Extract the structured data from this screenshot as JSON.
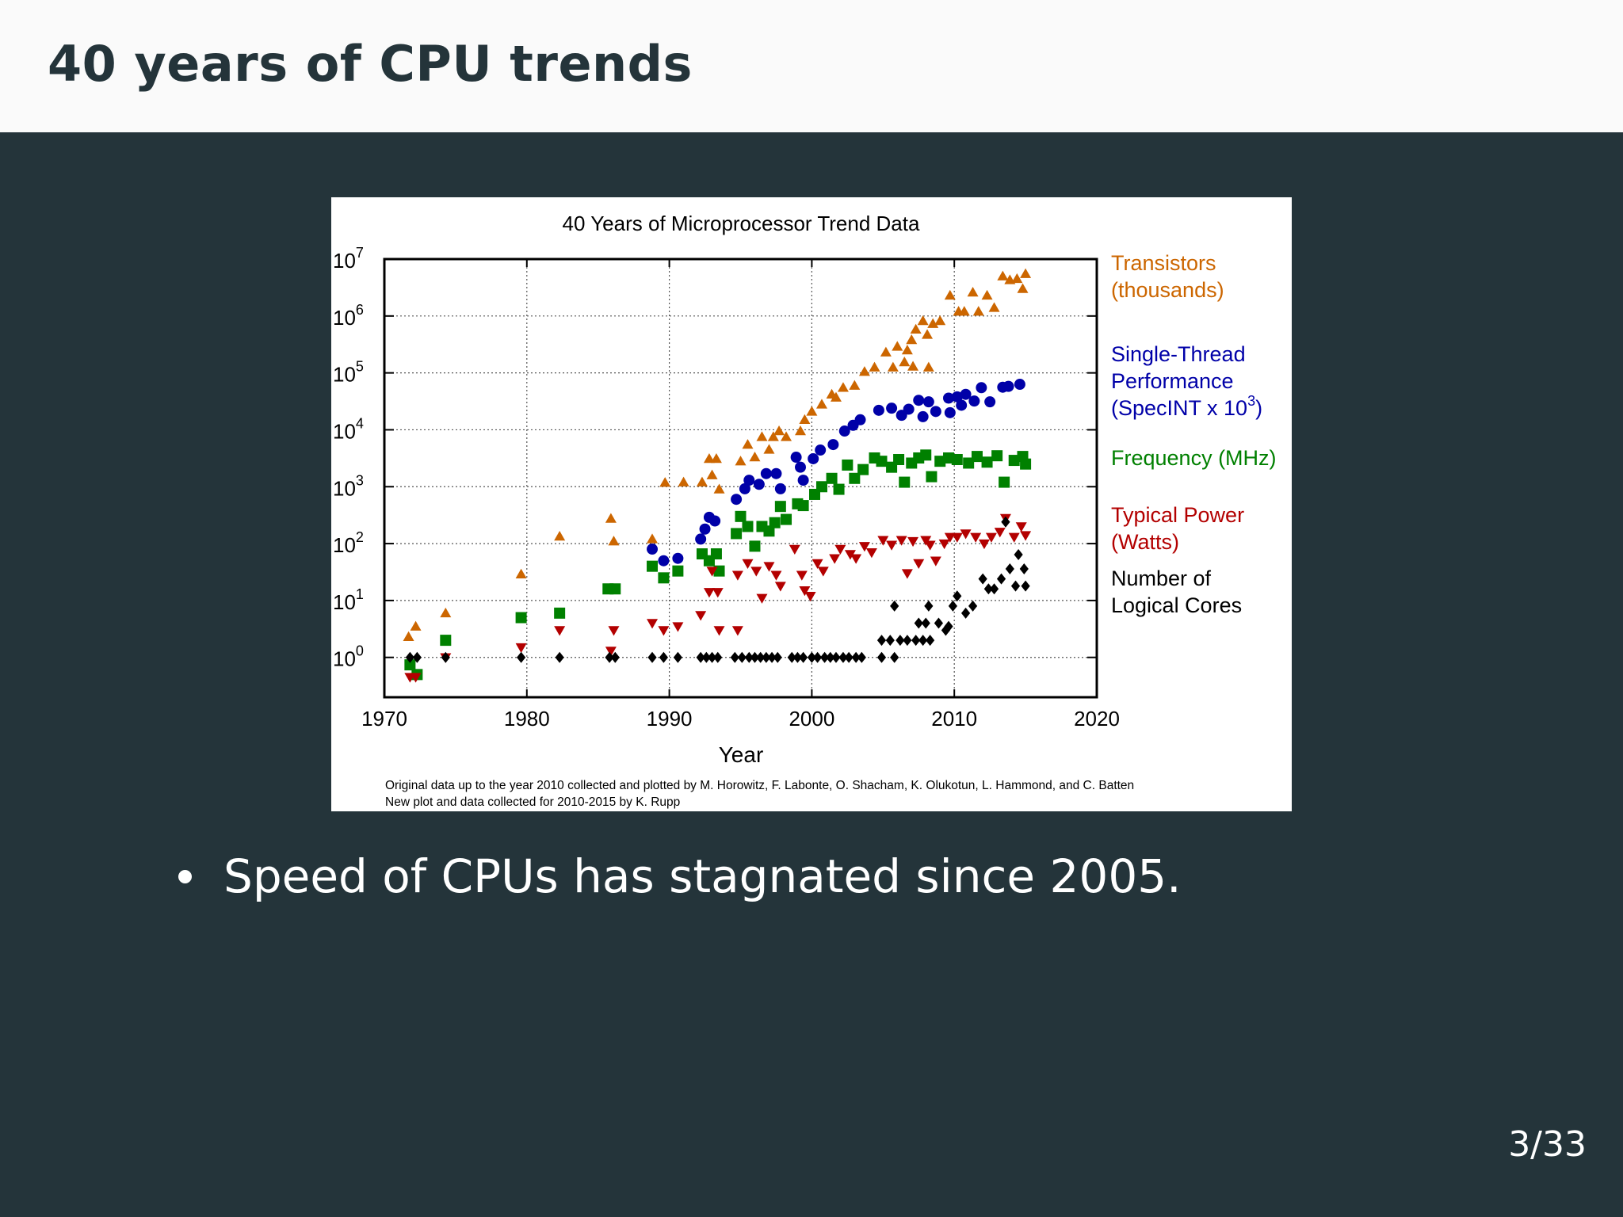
{
  "slide": {
    "title": "40 years of CPU trends",
    "bullets": [
      "Speed of CPUs has stagnated since 2005."
    ],
    "page_number": "3/33",
    "colors": {
      "background": "#24343a",
      "header": "#fafafa",
      "text": "#ffffff"
    }
  },
  "chart_data": {
    "type": "scatter",
    "title": "40 Years of Microprocessor Trend Data",
    "xlabel": "Year",
    "ylabel": "",
    "xlim": [
      1970,
      2020
    ],
    "ylim_log10": [
      -0.7,
      7
    ],
    "y_scale": "log",
    "x_ticks": [
      "1970",
      "1980",
      "1990",
      "2000",
      "2010",
      "2020"
    ],
    "y_ticks": [
      {
        "base": "10",
        "exp": "0"
      },
      {
        "base": "10",
        "exp": "1"
      },
      {
        "base": "10",
        "exp": "2"
      },
      {
        "base": "10",
        "exp": "3"
      },
      {
        "base": "10",
        "exp": "4"
      },
      {
        "base": "10",
        "exp": "5"
      },
      {
        "base": "10",
        "exp": "6"
      },
      {
        "base": "10",
        "exp": "7"
      }
    ],
    "grid": true,
    "legend_position": "right",
    "footnotes": [
      "Original data up to the year 2010 collected and plotted by M. Horowitz, F. Labonte, O. Shacham, K. Olukotun, L. Hammond, and C. Batten",
      "New plot and data collected for 2010-2015 by K. Rupp"
    ],
    "series": [
      {
        "name": "Transistors (thousands)",
        "legend_lines": [
          "Transistors",
          "(thousands)"
        ],
        "color": "#cc6600",
        "marker": "triangle-up",
        "points": [
          [
            1971.7,
            2.3
          ],
          [
            1972.2,
            3.5
          ],
          [
            1974.3,
            6
          ],
          [
            1979.6,
            29
          ],
          [
            1982.3,
            134
          ],
          [
            1985.9,
            275
          ],
          [
            1986.1,
            110
          ],
          [
            1989.7,
            1180
          ],
          [
            1988.8,
            120
          ],
          [
            1991,
            1200
          ],
          [
            1992.3,
            1200
          ],
          [
            1992.8,
            3100
          ],
          [
            1993.3,
            3100
          ],
          [
            1993,
            1600
          ],
          [
            1993.5,
            900
          ],
          [
            1995,
            2800
          ],
          [
            1995.5,
            5500
          ],
          [
            1996,
            3300
          ],
          [
            1996.5,
            7500
          ],
          [
            1997.3,
            7500
          ],
          [
            1997.7,
            9500
          ],
          [
            1997,
            4500
          ],
          [
            1998.2,
            7500
          ],
          [
            1999.2,
            9500
          ],
          [
            1999.5,
            15000
          ],
          [
            2000,
            21000
          ],
          [
            2000.7,
            28000
          ],
          [
            2001.4,
            42000
          ],
          [
            2001.7,
            37000
          ],
          [
            2002.2,
            55000
          ],
          [
            2003,
            60000
          ],
          [
            2003.7,
            105000
          ],
          [
            2004.4,
            125000
          ],
          [
            2005.2,
            230000
          ],
          [
            2005.7,
            125000
          ],
          [
            2006,
            290000
          ],
          [
            2006.5,
            155000
          ],
          [
            2007,
            380000
          ],
          [
            2007.3,
            580000
          ],
          [
            2007.8,
            820000
          ],
          [
            2008.1,
            470000
          ],
          [
            2008.5,
            730000
          ],
          [
            2009,
            820000
          ],
          [
            2009.7,
            2300000
          ],
          [
            2010.3,
            1200000
          ],
          [
            2010.7,
            1200000
          ],
          [
            2011.3,
            2600000
          ],
          [
            2011.7,
            1200000
          ],
          [
            2012.3,
            2300000
          ],
          [
            2012.8,
            1400000
          ],
          [
            2013.4,
            5000000
          ],
          [
            2013.9,
            4300000
          ],
          [
            2014.4,
            4500000
          ],
          [
            2014.8,
            3000000
          ],
          [
            2015,
            5500000
          ],
          [
            2007.1,
            130000
          ],
          [
            2008.2,
            125000
          ],
          [
            2006.7,
            250000
          ]
        ]
      },
      {
        "name": "Single-Thread Performance (SpecINT x 10^3)",
        "legend_lines": [
          "Single-Thread",
          "Performance"
        ],
        "legend_last_prefix": "(SpecINT x 10",
        "legend_last_sup": "3",
        "legend_last_suffix": ")",
        "color": "#0000a8",
        "marker": "circle",
        "points": [
          [
            1988.8,
            80
          ],
          [
            1989.6,
            50
          ],
          [
            1990.6,
            55
          ],
          [
            1992.5,
            180
          ],
          [
            1992.8,
            290
          ],
          [
            1993.2,
            250
          ],
          [
            1992.2,
            120
          ],
          [
            1994.7,
            600
          ],
          [
            1995.3,
            920
          ],
          [
            1995.6,
            1300
          ],
          [
            1996.3,
            1100
          ],
          [
            1996.8,
            1700
          ],
          [
            1997.5,
            1700
          ],
          [
            1997.8,
            920
          ],
          [
            1998.9,
            3300
          ],
          [
            1999.2,
            2200
          ],
          [
            1999.4,
            1300
          ],
          [
            2000.1,
            3100
          ],
          [
            2000.6,
            4400
          ],
          [
            2001.5,
            5500
          ],
          [
            2002.3,
            9500
          ],
          [
            2002.9,
            12000
          ],
          [
            2003.4,
            15000
          ],
          [
            2004.7,
            22000
          ],
          [
            2005.6,
            24000
          ],
          [
            2006.3,
            18000
          ],
          [
            2006.8,
            23000
          ],
          [
            2007.5,
            33000
          ],
          [
            2008.2,
            31000
          ],
          [
            2007.8,
            17000
          ],
          [
            2008.7,
            21000
          ],
          [
            2009.6,
            36000
          ],
          [
            2010.2,
            38000
          ],
          [
            2010.8,
            42000
          ],
          [
            2011.4,
            32000
          ],
          [
            2011.9,
            55000
          ],
          [
            2012.5,
            31000
          ],
          [
            2013.4,
            56000
          ],
          [
            2013.8,
            58000
          ],
          [
            2014.6,
            63000
          ],
          [
            2009.7,
            20000
          ],
          [
            2010.5,
            27000
          ]
        ]
      },
      {
        "name": "Frequency (MHz)",
        "legend_lines": [
          "Frequency (MHz)"
        ],
        "color": "#008000",
        "marker": "square",
        "points": [
          [
            1971.8,
            0.74
          ],
          [
            1972.3,
            0.5
          ],
          [
            1974.3,
            2
          ],
          [
            1979.6,
            5
          ],
          [
            1982.3,
            6
          ],
          [
            1985.7,
            16
          ],
          [
            1986.2,
            16
          ],
          [
            1988.8,
            40
          ],
          [
            1989.6,
            25
          ],
          [
            1990.6,
            33
          ],
          [
            1992.3,
            66
          ],
          [
            1992.8,
            50
          ],
          [
            1993.3,
            66
          ],
          [
            1993.5,
            33
          ],
          [
            1994.7,
            150
          ],
          [
            1995,
            300
          ],
          [
            1995.5,
            200
          ],
          [
            1996,
            90
          ],
          [
            1996.5,
            200
          ],
          [
            1997,
            166
          ],
          [
            1997.4,
            233
          ],
          [
            1997.8,
            450
          ],
          [
            1998.2,
            266
          ],
          [
            1999,
            500
          ],
          [
            1999.4,
            466
          ],
          [
            2000.2,
            733
          ],
          [
            2000.7,
            1000
          ],
          [
            2001.4,
            1400
          ],
          [
            2001.9,
            900
          ],
          [
            2002.5,
            2400
          ],
          [
            2003,
            1400
          ],
          [
            2003.6,
            2000
          ],
          [
            2004.4,
            3200
          ],
          [
            2004.9,
            2800
          ],
          [
            2005.6,
            2200
          ],
          [
            2006.1,
            3000
          ],
          [
            2006.5,
            1200
          ],
          [
            2007,
            2600
          ],
          [
            2007.5,
            3200
          ],
          [
            2008,
            3600
          ],
          [
            2008.4,
            1500
          ],
          [
            2009,
            2800
          ],
          [
            2009.6,
            3200
          ],
          [
            2010.2,
            3000
          ],
          [
            2011,
            2600
          ],
          [
            2011.6,
            3400
          ],
          [
            2012.3,
            2700
          ],
          [
            2013,
            3500
          ],
          [
            2013.5,
            1200
          ],
          [
            2014.2,
            2900
          ],
          [
            2014.8,
            3400
          ],
          [
            2015,
            2500
          ]
        ]
      },
      {
        "name": "Typical Power (Watts)",
        "legend_lines": [
          "Typical Power",
          "(Watts)"
        ],
        "color": "#b30000",
        "marker": "triangle-down",
        "points": [
          [
            1971.8,
            0.45
          ],
          [
            1972.2,
            0.45
          ],
          [
            1974.3,
            1
          ],
          [
            1979.6,
            1.5
          ],
          [
            1982.3,
            3
          ],
          [
            1985.9,
            1.3
          ],
          [
            1986.1,
            3
          ],
          [
            1988.8,
            4
          ],
          [
            1989.6,
            3
          ],
          [
            1990.6,
            3.5
          ],
          [
            1992.2,
            5.5
          ],
          [
            1992.8,
            14
          ],
          [
            1993.4,
            14
          ],
          [
            1993.5,
            3
          ],
          [
            1994.8,
            3
          ],
          [
            1993,
            33
          ],
          [
            1994.8,
            28
          ],
          [
            1995.5,
            45
          ],
          [
            1996.1,
            33
          ],
          [
            1996.5,
            11
          ],
          [
            1997,
            40
          ],
          [
            1997.5,
            28
          ],
          [
            1997.8,
            18
          ],
          [
            1998.8,
            80
          ],
          [
            1999.3,
            28
          ],
          [
            1999.5,
            15
          ],
          [
            1999.9,
            12
          ],
          [
            2000.4,
            45
          ],
          [
            2000.8,
            33
          ],
          [
            2001.6,
            55
          ],
          [
            2002,
            80
          ],
          [
            2002.7,
            65
          ],
          [
            2003.1,
            55
          ],
          [
            2003.7,
            90
          ],
          [
            2004.2,
            70
          ],
          [
            2005,
            115
          ],
          [
            2005.6,
            95
          ],
          [
            2006.3,
            115
          ],
          [
            2006.7,
            30
          ],
          [
            2007.1,
            110
          ],
          [
            2007.5,
            45
          ],
          [
            2008,
            115
          ],
          [
            2008.3,
            95
          ],
          [
            2008.7,
            50
          ],
          [
            2009.3,
            100
          ],
          [
            2009.7,
            130
          ],
          [
            2010.2,
            130
          ],
          [
            2010.8,
            150
          ],
          [
            2011.5,
            130
          ],
          [
            2012.1,
            100
          ],
          [
            2012.6,
            130
          ],
          [
            2013.2,
            160
          ],
          [
            2013.6,
            280
          ],
          [
            2014.2,
            130
          ],
          [
            2014.7,
            200
          ],
          [
            2015,
            140
          ]
        ]
      },
      {
        "name": "Number of Logical Cores",
        "legend_lines": [
          "Number of",
          "Logical Cores"
        ],
        "color": "#000000",
        "marker": "diamond",
        "points": [
          [
            1971.8,
            1
          ],
          [
            1972.3,
            1
          ],
          [
            1974.3,
            1
          ],
          [
            1979.6,
            1
          ],
          [
            1982.3,
            1
          ],
          [
            1985.8,
            1
          ],
          [
            1986.2,
            1
          ],
          [
            1988.8,
            1
          ],
          [
            1989.6,
            1
          ],
          [
            1990.6,
            1
          ],
          [
            1992.2,
            1
          ],
          [
            1992.6,
            1
          ],
          [
            1993,
            1
          ],
          [
            1993.4,
            1
          ],
          [
            1994.6,
            1
          ],
          [
            1995.1,
            1
          ],
          [
            1995.6,
            1
          ],
          [
            1996,
            1
          ],
          [
            1996.4,
            1
          ],
          [
            1996.8,
            1
          ],
          [
            1997.2,
            1
          ],
          [
            1997.6,
            1
          ],
          [
            1998.6,
            1
          ],
          [
            1999,
            1
          ],
          [
            1999.4,
            1
          ],
          [
            2000,
            1
          ],
          [
            2000.4,
            1
          ],
          [
            2000.9,
            1
          ],
          [
            2001.3,
            1
          ],
          [
            2001.7,
            1
          ],
          [
            2002.2,
            1
          ],
          [
            2002.6,
            1
          ],
          [
            2003.1,
            1
          ],
          [
            2003.5,
            1
          ],
          [
            2004.9,
            1
          ],
          [
            2005.8,
            1
          ],
          [
            2004.9,
            2
          ],
          [
            2005.5,
            2
          ],
          [
            2006.2,
            2
          ],
          [
            2006.7,
            2
          ],
          [
            2007.3,
            2
          ],
          [
            2007.8,
            2
          ],
          [
            2008.3,
            2
          ],
          [
            2005.8,
            8
          ],
          [
            2007.5,
            4
          ],
          [
            2008,
            4
          ],
          [
            2008.2,
            8
          ],
          [
            2008.9,
            4
          ],
          [
            2009.4,
            3
          ],
          [
            2009.6,
            3.5
          ],
          [
            2009.9,
            8
          ],
          [
            2010.2,
            12
          ],
          [
            2010.8,
            6
          ],
          [
            2011.3,
            8
          ],
          [
            2012,
            24
          ],
          [
            2012.4,
            16
          ],
          [
            2012.8,
            16
          ],
          [
            2013.3,
            24
          ],
          [
            2013.9,
            36
          ],
          [
            2014.3,
            18
          ],
          [
            2014.5,
            64
          ],
          [
            2014.9,
            36
          ],
          [
            2015,
            18
          ],
          [
            2013.6,
            240
          ]
        ]
      }
    ]
  }
}
